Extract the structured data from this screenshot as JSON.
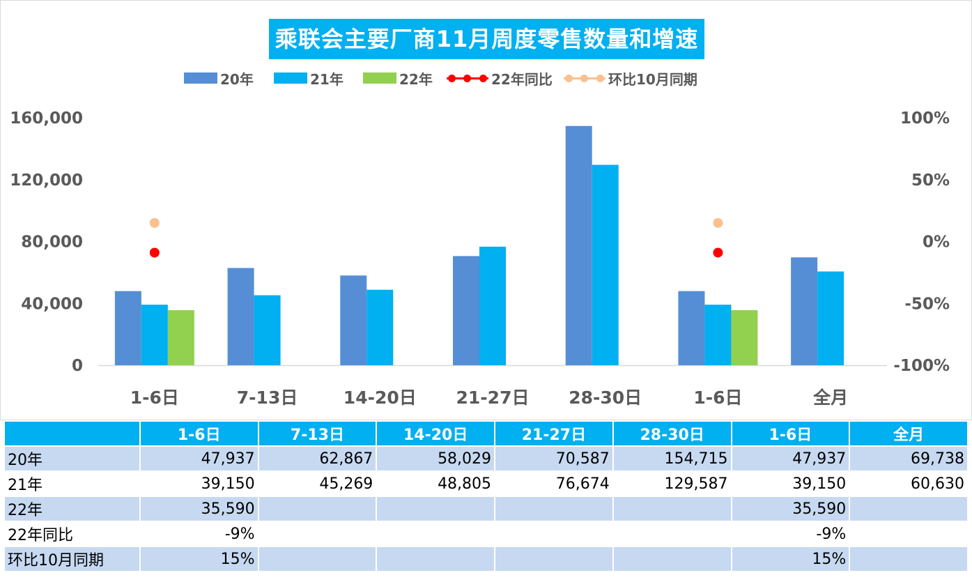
{
  "title": "乘联会主要厂商11月周度零售数量和增速",
  "colors": {
    "s20": "#558ed5",
    "s21": "#00b0f0",
    "s22": "#92d050",
    "yoy": "#ff0000",
    "mom": "#fac090",
    "title_bg": "#00b0f0",
    "header_bg": "#00b0f0",
    "row_shade": "#c6d9f1"
  },
  "chart_data": {
    "type": "bar",
    "title": "乘联会主要厂商11月周度零售数量和增速",
    "categories": [
      "1-6日",
      "7-13日",
      "14-20日",
      "21-27日",
      "28-30日",
      "1-6日",
      "全月"
    ],
    "series": [
      {
        "name": "20年",
        "type": "bar",
        "axis": "left",
        "values": [
          47937,
          62867,
          58029,
          70587,
          154715,
          47937,
          69738
        ]
      },
      {
        "name": "21年",
        "type": "bar",
        "axis": "left",
        "values": [
          39150,
          45269,
          48805,
          76674,
          129587,
          39150,
          60630
        ]
      },
      {
        "name": "22年",
        "type": "bar",
        "axis": "left",
        "values": [
          35590,
          null,
          null,
          null,
          null,
          35590,
          null
        ]
      },
      {
        "name": "22年同比",
        "type": "line",
        "axis": "right",
        "values": [
          -0.09,
          null,
          null,
          null,
          null,
          -0.09,
          null
        ]
      },
      {
        "name": "环比10月同期",
        "type": "line",
        "axis": "right",
        "values": [
          0.15,
          null,
          null,
          null,
          null,
          0.15,
          null
        ]
      }
    ],
    "left_axis": {
      "min": 0,
      "max": 160000,
      "ticks": [
        0,
        40000,
        80000,
        120000,
        160000
      ],
      "tick_labels": [
        "0",
        "40,000",
        "80,000",
        "120,000",
        "160,000"
      ]
    },
    "right_axis": {
      "min": -1,
      "max": 1,
      "ticks": [
        -1,
        -0.5,
        0,
        0.5,
        1
      ],
      "tick_labels": [
        "-100%",
        "-50%",
        "0%",
        "50%",
        "100%"
      ]
    },
    "legend_position": "top",
    "grid": false
  },
  "table": {
    "headers": [
      "",
      "1-6日",
      "7-13日",
      "14-20日",
      "21-27日",
      "28-30日",
      "1-6日",
      "全月"
    ],
    "rows": [
      {
        "label": "20年",
        "cells": [
          "47,937",
          "62,867",
          "58,029",
          "70,587",
          "154,715",
          "47,937",
          "69,738"
        ]
      },
      {
        "label": "21年",
        "cells": [
          "39,150",
          "45,269",
          "48,805",
          "76,674",
          "129,587",
          "39,150",
          "60,630"
        ]
      },
      {
        "label": "22年",
        "cells": [
          "35,590",
          "",
          "",
          "",
          "",
          "35,590",
          ""
        ]
      },
      {
        "label": "22年同比",
        "cells": [
          "-9%",
          "",
          "",
          "",
          "",
          "-9%",
          ""
        ]
      },
      {
        "label": "环比10月同期",
        "cells": [
          "15%",
          "",
          "",
          "",
          "",
          "15%",
          ""
        ]
      }
    ]
  }
}
